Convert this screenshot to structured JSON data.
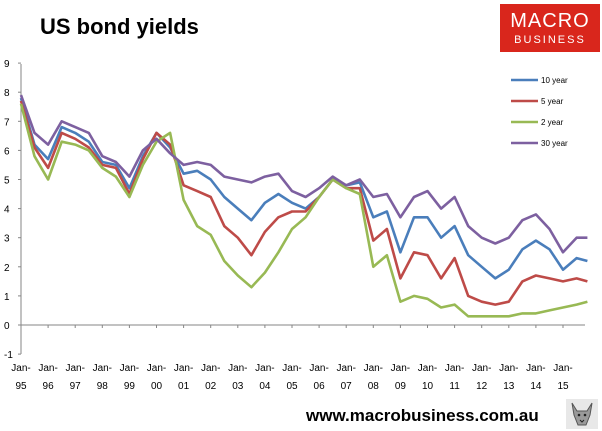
{
  "title": "US bond yields",
  "logo": {
    "line1": "MACRO",
    "line2": "BUSINESS"
  },
  "footer_url": "www.macrobusiness.com.au",
  "colors": {
    "10 year": "#4a7ebb",
    "5 year": "#be4b48",
    "2 year": "#98b954",
    "30 year": "#7d60a0",
    "logo_bg": "#d9261c"
  },
  "chart_data": {
    "type": "line",
    "title": "US bond yields",
    "xlabel": "",
    "ylabel": "",
    "ylim": [
      -1,
      9
    ],
    "yticks": [
      -1,
      0,
      1,
      2,
      3,
      4,
      5,
      6,
      7,
      8,
      9
    ],
    "x_tick_labels": [
      "95",
      "96",
      "97",
      "98",
      "99",
      "00",
      "01",
      "02",
      "03",
      "04",
      "05",
      "06",
      "07",
      "08",
      "09",
      "10",
      "11",
      "12",
      "13",
      "14",
      "15"
    ],
    "x_tick_prefix": "Jan-",
    "x_start_year": 1995,
    "legend_position": "top-right",
    "grid": false,
    "series": [
      {
        "name": "10 year",
        "color": "#4a7ebb",
        "x": [
          1995.0,
          1995.5,
          1996.0,
          1996.5,
          1997.0,
          1997.5,
          1998.0,
          1998.5,
          1999.0,
          1999.5,
          2000.0,
          2000.5,
          2001.0,
          2001.5,
          2002.0,
          2002.5,
          2003.0,
          2003.5,
          2004.0,
          2004.5,
          2005.0,
          2005.5,
          2006.0,
          2006.5,
          2007.0,
          2007.5,
          2008.0,
          2008.5,
          2009.0,
          2009.5,
          2010.0,
          2010.5,
          2011.0,
          2011.5,
          2012.0,
          2012.5,
          2013.0,
          2013.5,
          2014.0,
          2014.5,
          2015.0,
          2015.5,
          2015.9
        ],
        "values": [
          7.8,
          6.2,
          5.7,
          6.8,
          6.6,
          6.3,
          5.6,
          5.5,
          4.7,
          5.8,
          6.6,
          6.1,
          5.2,
          5.3,
          5.0,
          4.4,
          4.0,
          3.6,
          4.2,
          4.5,
          4.2,
          4.0,
          4.4,
          5.0,
          4.8,
          4.9,
          3.7,
          3.9,
          2.5,
          3.7,
          3.7,
          3.0,
          3.4,
          2.4,
          2.0,
          1.6,
          1.9,
          2.6,
          2.9,
          2.6,
          1.9,
          2.3,
          2.2
        ]
      },
      {
        "name": "5 year",
        "color": "#be4b48",
        "x": [
          1995.0,
          1995.5,
          1996.0,
          1996.5,
          1997.0,
          1997.5,
          1998.0,
          1998.5,
          1999.0,
          1999.5,
          2000.0,
          2000.5,
          2001.0,
          2001.5,
          2002.0,
          2002.5,
          2003.0,
          2003.5,
          2004.0,
          2004.5,
          2005.0,
          2005.5,
          2006.0,
          2006.5,
          2007.0,
          2007.5,
          2008.0,
          2008.5,
          2009.0,
          2009.5,
          2010.0,
          2010.5,
          2011.0,
          2011.5,
          2012.0,
          2012.5,
          2013.0,
          2013.5,
          2014.0,
          2014.5,
          2015.0,
          2015.5,
          2015.9
        ],
        "values": [
          7.7,
          6.1,
          5.4,
          6.6,
          6.4,
          6.1,
          5.5,
          5.4,
          4.5,
          5.7,
          6.6,
          6.2,
          4.8,
          4.6,
          4.4,
          3.4,
          3.0,
          2.4,
          3.2,
          3.7,
          3.9,
          3.9,
          4.4,
          5.0,
          4.7,
          4.7,
          2.9,
          3.3,
          1.6,
          2.5,
          2.4,
          1.6,
          2.3,
          1.0,
          0.8,
          0.7,
          0.8,
          1.5,
          1.7,
          1.6,
          1.5,
          1.6,
          1.5
        ]
      },
      {
        "name": "2 year",
        "color": "#98b954",
        "x": [
          1995.0,
          1995.5,
          1996.0,
          1996.5,
          1997.0,
          1997.5,
          1998.0,
          1998.5,
          1999.0,
          1999.5,
          2000.0,
          2000.5,
          2001.0,
          2001.5,
          2002.0,
          2002.5,
          2003.0,
          2003.5,
          2004.0,
          2004.5,
          2005.0,
          2005.5,
          2006.0,
          2006.5,
          2007.0,
          2007.5,
          2008.0,
          2008.5,
          2009.0,
          2009.5,
          2010.0,
          2010.5,
          2011.0,
          2011.5,
          2012.0,
          2012.5,
          2013.0,
          2013.5,
          2014.0,
          2014.5,
          2015.0,
          2015.5,
          2015.9
        ],
        "values": [
          7.6,
          5.8,
          5.0,
          6.3,
          6.2,
          6.0,
          5.4,
          5.1,
          4.4,
          5.5,
          6.3,
          6.6,
          4.3,
          3.4,
          3.1,
          2.2,
          1.7,
          1.3,
          1.8,
          2.5,
          3.3,
          3.7,
          4.4,
          5.0,
          4.7,
          4.5,
          2.0,
          2.4,
          0.8,
          1.0,
          0.9,
          0.6,
          0.7,
          0.3,
          0.3,
          0.3,
          0.3,
          0.4,
          0.4,
          0.5,
          0.6,
          0.7,
          0.8
        ]
      },
      {
        "name": "30 year",
        "color": "#7d60a0",
        "x": [
          1995.0,
          1995.5,
          1996.0,
          1996.5,
          1997.0,
          1997.5,
          1998.0,
          1998.5,
          1999.0,
          1999.5,
          2000.0,
          2000.5,
          2001.0,
          2001.5,
          2002.0,
          2002.5,
          2003.0,
          2003.5,
          2004.0,
          2004.5,
          2005.0,
          2005.5,
          2006.0,
          2006.5,
          2007.0,
          2007.5,
          2008.0,
          2008.5,
          2009.0,
          2009.5,
          2010.0,
          2010.5,
          2011.0,
          2011.5,
          2012.0,
          2012.5,
          2013.0,
          2013.5,
          2014.0,
          2014.5,
          2015.0,
          2015.5,
          2015.9
        ],
        "values": [
          7.9,
          6.6,
          6.2,
          7.0,
          6.8,
          6.6,
          5.8,
          5.6,
          5.1,
          6.0,
          6.4,
          5.9,
          5.5,
          5.6,
          5.5,
          5.1,
          5.0,
          4.9,
          5.1,
          5.2,
          4.6,
          4.4,
          4.7,
          5.1,
          4.8,
          5.0,
          4.4,
          4.5,
          3.7,
          4.4,
          4.6,
          4.0,
          4.4,
          3.4,
          3.0,
          2.8,
          3.0,
          3.6,
          3.8,
          3.3,
          2.5,
          3.0,
          3.0
        ]
      }
    ]
  }
}
